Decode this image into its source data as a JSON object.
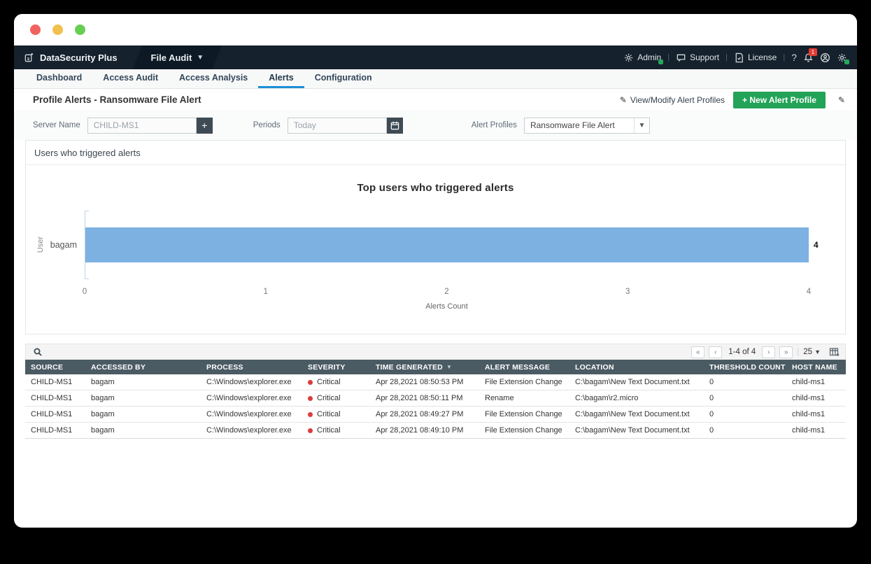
{
  "colors": {
    "topbar_bg": "#15212c",
    "module_bg": "#0d1924",
    "nav_bg": "#f7f8f8",
    "nav_active": "#1e8fd5",
    "button_green": "#23a357",
    "accent_green": "#26a65b",
    "bar_blue": "#7db1e2",
    "axis_blue": "#bcd4ea",
    "table_header_bg": "#4b5b64",
    "critical_red": "#e03a3a"
  },
  "topbar": {
    "brand": "DataSecurity Plus",
    "module": "File Audit",
    "admin_label": "Admin",
    "support_label": "Support",
    "license_label": "License",
    "help_label": "?",
    "notification_count": "1"
  },
  "nav": {
    "tabs": [
      {
        "label": "Dashboard"
      },
      {
        "label": "Access Audit"
      },
      {
        "label": "Access Analysis"
      },
      {
        "label": "Alerts"
      },
      {
        "label": "Configuration"
      }
    ],
    "active": "Alerts"
  },
  "page": {
    "title": "Profile Alerts - Ransomware File Alert",
    "view_modify_label": "View/Modify Alert Profiles",
    "new_alert_label": "+ New Alert Profile"
  },
  "filters": {
    "server_name": {
      "label": "Server Name",
      "value": "CHILD-MS1"
    },
    "periods": {
      "label": "Periods",
      "value": "Today"
    },
    "alert_profiles": {
      "label": "Alert Profiles",
      "value": "Ransomware File Alert"
    }
  },
  "chart_panel": {
    "header": "Users who triggered alerts"
  },
  "chart_data": {
    "type": "bar",
    "orientation": "horizontal",
    "title": "Top users who triggered alerts",
    "categories": [
      "bagam"
    ],
    "values": [
      4
    ],
    "value_labels": [
      "4"
    ],
    "xlabel": "Alerts Count",
    "ylabel": "User",
    "xlim": [
      0,
      4
    ],
    "xticks": [
      0,
      1,
      2,
      3,
      4
    ],
    "grid": false,
    "bar_color": "#7db1e2"
  },
  "table": {
    "pagination": {
      "first": "«",
      "prev": "‹",
      "range": "1-4 of 4",
      "next": "›",
      "last": "»",
      "page_size": "25"
    },
    "columns": [
      "SOURCE",
      "ACCESSED BY",
      "PROCESS",
      "SEVERITY",
      "TIME GENERATED",
      "ALERT MESSAGE",
      "LOCATION",
      "THRESHOLD COUNT",
      "HOST NAME"
    ],
    "sort_column": "TIME GENERATED",
    "rows": [
      {
        "source": "CHILD-MS1",
        "accessed_by": "bagam",
        "process": "C:\\Windows\\explorer.exe",
        "severity": "Critical",
        "time": "Apr 28,2021 08:50:53 PM",
        "message": "File Extension Change",
        "location": "C:\\bagam\\New Text Document.txt",
        "threshold": "0",
        "host": "child-ms1"
      },
      {
        "source": "CHILD-MS1",
        "accessed_by": "bagam",
        "process": "C:\\Windows\\explorer.exe",
        "severity": "Critical",
        "time": "Apr 28,2021 08:50:11 PM",
        "message": "Rename",
        "location": "C:\\bagam\\r2.micro",
        "threshold": "0",
        "host": "child-ms1"
      },
      {
        "source": "CHILD-MS1",
        "accessed_by": "bagam",
        "process": "C:\\Windows\\explorer.exe",
        "severity": "Critical",
        "time": "Apr 28,2021 08:49:27 PM",
        "message": "File Extension Change",
        "location": "C:\\bagam\\New Text Document.txt",
        "threshold": "0",
        "host": "child-ms1"
      },
      {
        "source": "CHILD-MS1",
        "accessed_by": "bagam",
        "process": "C:\\Windows\\explorer.exe",
        "severity": "Critical",
        "time": "Apr 28,2021 08:49:10 PM",
        "message": "File Extension Change",
        "location": "C:\\bagam\\New Text Document.txt",
        "threshold": "0",
        "host": "child-ms1"
      }
    ]
  }
}
